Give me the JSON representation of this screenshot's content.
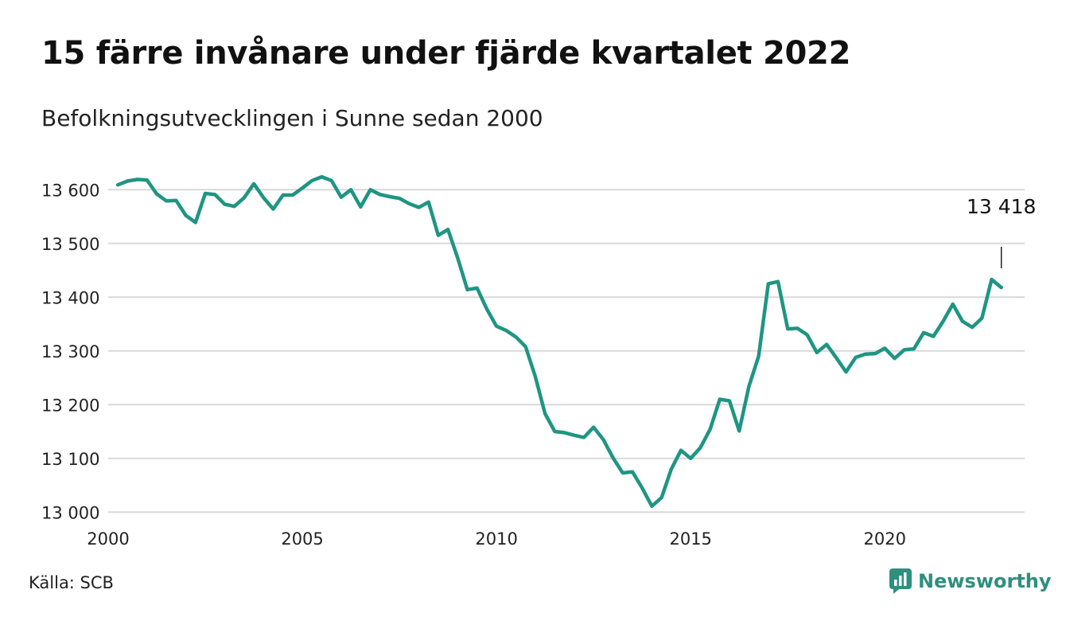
{
  "title": "15 färre invånare under fjärde kvartalet 2022",
  "subtitle": "Befolkningsutvecklingen i Sunne sedan 2000",
  "source": "Källa: SCB",
  "brand": "Newsworthy",
  "colors": {
    "line": "#1f9583",
    "grid": "#d9d9d9",
    "brand": "#2f8f7e"
  },
  "chart_data": {
    "type": "line",
    "title": "15 färre invånare under fjärde kvartalet 2022",
    "subtitle": "Befolkningsutvecklingen i Sunne sedan 2000",
    "xlabel": "",
    "ylabel": "",
    "xlim": [
      2000,
      2023.6
    ],
    "ylim": [
      12990,
      13630
    ],
    "x_ticks": [
      2000,
      2005,
      2010,
      2015,
      2020
    ],
    "x_tick_labels": [
      "2000",
      "2005",
      "2010",
      "2015",
      "2020"
    ],
    "y_ticks": [
      13000,
      13100,
      13200,
      13300,
      13400,
      13500,
      13600
    ],
    "y_tick_labels": [
      "13 000",
      "13 100",
      "13 200",
      "13 300",
      "13 400",
      "13 500",
      "13 600"
    ],
    "grid": true,
    "annotation": {
      "label": "13 418",
      "x": 2023.0,
      "y": 13418
    },
    "series": [
      {
        "x": [
          2000.25,
          2000.5,
          2000.75,
          2001.0,
          2001.25,
          2001.5,
          2001.75,
          2002.0,
          2002.25,
          2002.5,
          2002.75,
          2003.0,
          2003.25,
          2003.5,
          2003.75,
          2004.0,
          2004.25,
          2004.5,
          2004.75,
          2005.0,
          2005.25,
          2005.5,
          2005.75,
          2006.0,
          2006.25,
          2006.5,
          2006.75,
          2007.0,
          2007.25,
          2007.5,
          2007.75,
          2008.0,
          2008.25,
          2008.5,
          2008.75,
          2009.0,
          2009.25,
          2009.5,
          2009.75,
          2010.0,
          2010.25,
          2010.5,
          2010.75,
          2011.0,
          2011.25,
          2011.5,
          2011.75,
          2012.0,
          2012.25,
          2012.5,
          2012.75,
          2013.0,
          2013.25,
          2013.5,
          2013.75,
          2014.0,
          2014.25,
          2014.5,
          2014.75,
          2015.0,
          2015.25,
          2015.5,
          2015.75,
          2016.0,
          2016.25,
          2016.5,
          2016.75,
          2017.0,
          2017.25,
          2017.5,
          2017.75,
          2018.0,
          2018.25,
          2018.5,
          2018.75,
          2019.0,
          2019.25,
          2019.5,
          2019.75,
          2020.0,
          2020.25,
          2020.5,
          2020.75,
          2021.0,
          2021.25,
          2021.5,
          2021.75,
          2022.0,
          2022.25,
          2022.5,
          2022.75,
          2023.0
        ],
        "values": [
          13609,
          13616,
          13619,
          13618,
          13592,
          13579,
          13580,
          13552,
          13539,
          13593,
          13591,
          13573,
          13569,
          13585,
          13611,
          13585,
          13564,
          13590,
          13590,
          13603,
          13617,
          13624,
          13617,
          13586,
          13600,
          13568,
          13600,
          13591,
          13587,
          13584,
          13574,
          13567,
          13577,
          13515,
          13526,
          13473,
          13414,
          13417,
          13378,
          13346,
          13338,
          13326,
          13308,
          13252,
          13183,
          13150,
          13148,
          13143,
          13139,
          13158,
          13135,
          13101,
          13073,
          13075,
          13045,
          13011,
          13027,
          13080,
          13115,
          13100,
          13120,
          13154,
          13210,
          13207,
          13151,
          13234,
          13290,
          13425,
          13429,
          13341,
          13342,
          13330,
          13297,
          13312,
          13287,
          13261,
          13288,
          13294,
          13295,
          13305,
          13286,
          13302,
          13304,
          13334,
          13327,
          13355,
          13387,
          13355,
          13344,
          13361,
          13433,
          13418
        ]
      }
    ]
  }
}
